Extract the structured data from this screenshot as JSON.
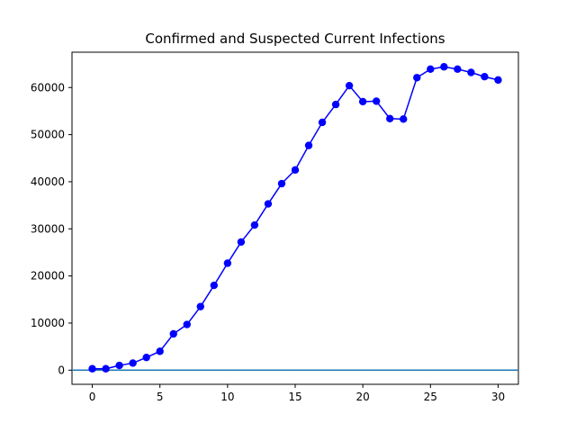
{
  "chart_data": {
    "type": "line",
    "title": "Confirmed and Suspected Current Infections",
    "xlabel": "",
    "ylabel": "",
    "xlim": [
      -1.5,
      31.5
    ],
    "ylim": [
      -3000,
      67500
    ],
    "x_ticks": [
      0,
      5,
      10,
      15,
      20,
      25,
      30
    ],
    "y_ticks": [
      0,
      10000,
      20000,
      30000,
      40000,
      50000,
      60000
    ],
    "grid": false,
    "series": [
      {
        "color": "#0000ff",
        "marker": "circle",
        "x": [
          0,
          1,
          2,
          3,
          4,
          5,
          6,
          7,
          8,
          9,
          10,
          11,
          12,
          13,
          14,
          15,
          16,
          17,
          18,
          19,
          20,
          21,
          22,
          23,
          24,
          25,
          26,
          27,
          28,
          29,
          30
        ],
        "values": [
          300,
          300,
          1000,
          1500,
          2700,
          4000,
          7700,
          9700,
          13500,
          18000,
          22700,
          27200,
          30800,
          35300,
          39600,
          42500,
          47700,
          52600,
          56400,
          60400,
          57000,
          57100,
          53400,
          53300,
          62100,
          63900,
          64400,
          63900,
          63200,
          62300,
          61600
        ]
      }
    ],
    "reference_lines": [
      {
        "orientation": "horizontal",
        "value": 0,
        "color": "#1f77b4"
      }
    ]
  }
}
